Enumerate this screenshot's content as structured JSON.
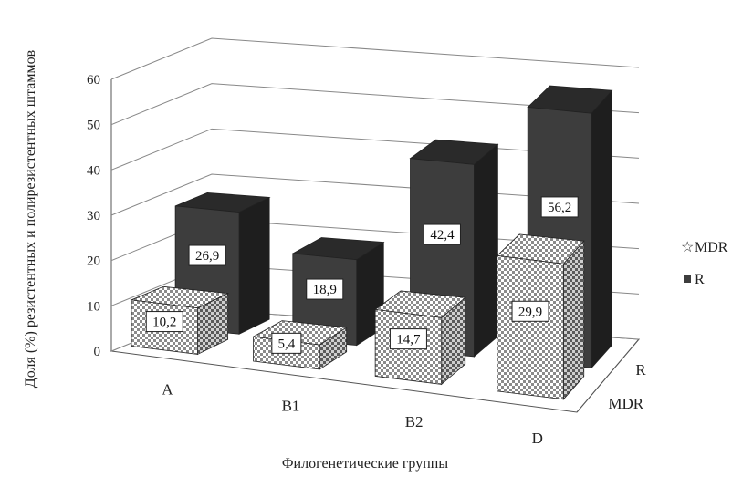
{
  "chart_data": {
    "type": "bar",
    "style": "3d-clustered-depth",
    "categories": [
      "A",
      "B1",
      "B2",
      "D"
    ],
    "series": [
      {
        "name": "MDR",
        "values": [
          10.2,
          5.4,
          14.7,
          29.9
        ],
        "labels": [
          "10,2",
          "5,4",
          "14,7",
          "29,9"
        ],
        "pattern": "checker"
      },
      {
        "name": "R",
        "values": [
          26.9,
          18.9,
          42.4,
          56.2
        ],
        "labels": [
          "26,9",
          "18,9",
          "42,4",
          "56,2"
        ],
        "color": "#3d3d3d"
      }
    ],
    "y_ticks": [
      "0",
      "10",
      "20",
      "30",
      "40",
      "50",
      "60"
    ],
    "ylim": [
      0,
      60
    ],
    "depth_labels": [
      "R",
      "MDR"
    ],
    "xlabel": "Филогенетические группы",
    "ylabel": "Доля (%) резистентных и полирезистентных штаммов",
    "legend": {
      "position": "right",
      "items": [
        "MDR",
        "R"
      ]
    },
    "grid": true
  }
}
